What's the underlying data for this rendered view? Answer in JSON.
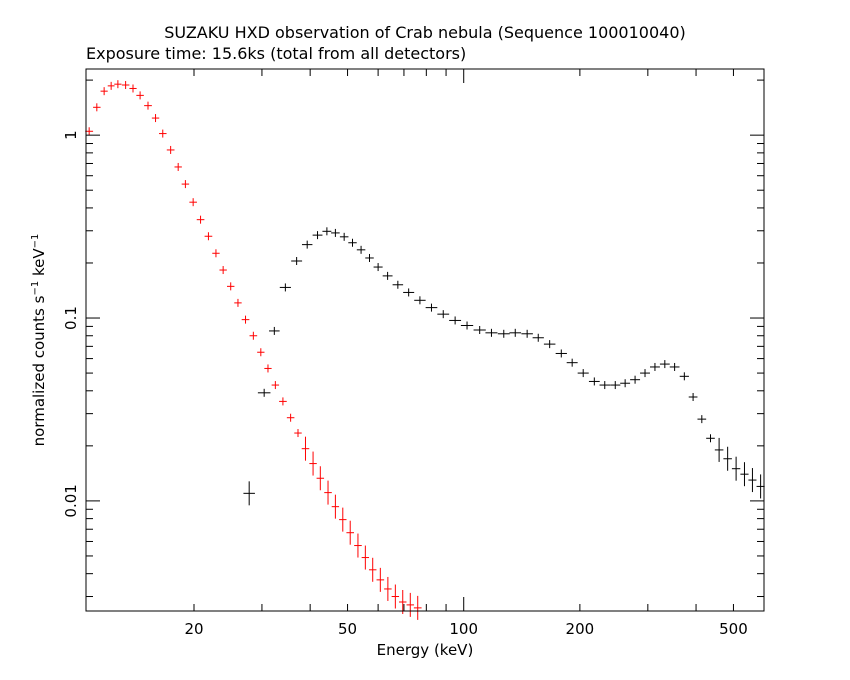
{
  "chart_data": {
    "type": "scatter",
    "title": "SUZAKU HXD observation of Crab nebula (Sequence 100010040)",
    "subtitle": "Exposure time: 15.6ks (total from all detectors)",
    "xlabel": "Energy (keV)",
    "ylabel": {
      "prefix": "normalized counts s",
      "sup1": "−1",
      "mid": " keV",
      "sup2": "−1"
    },
    "x_scale": "log",
    "y_scale": "log",
    "xlim": [
      10.5,
      600
    ],
    "ylim": [
      0.0025,
      2.3
    ],
    "grid": false,
    "x_tick_labels": [
      {
        "value": 20,
        "label": "20"
      },
      {
        "value": 50,
        "label": "50"
      },
      {
        "value": 100,
        "label": "100"
      },
      {
        "value": 200,
        "label": "200"
      },
      {
        "value": 500,
        "label": "500"
      }
    ],
    "y_tick_labels": [
      {
        "value": 1,
        "label": "1"
      },
      {
        "value": 0.1,
        "label": "0.1"
      },
      {
        "value": 0.01,
        "label": "0.01"
      }
    ],
    "series": [
      {
        "color": "#ff0000",
        "x": [
          10.7,
          11.2,
          11.7,
          12.2,
          12.7,
          13.3,
          13.9,
          14.5,
          15.2,
          15.9,
          16.6,
          17.4,
          18.2,
          19.0,
          19.9,
          20.8,
          21.8,
          22.8,
          23.8,
          24.9,
          26.0,
          27.2,
          28.5,
          29.8,
          31.1,
          32.5,
          34.0,
          35.6,
          37.2,
          38.9,
          40.7,
          42.5,
          44.5,
          46.5,
          48.6,
          50.8,
          53.2,
          55.6,
          58.1,
          60.8,
          63.6,
          66.5,
          69.5,
          72.7,
          76.0
        ],
        "y": [
          1.05,
          1.42,
          1.74,
          1.86,
          1.9,
          1.88,
          1.8,
          1.65,
          1.45,
          1.24,
          1.02,
          0.83,
          0.67,
          0.54,
          0.43,
          0.345,
          0.28,
          0.226,
          0.183,
          0.149,
          0.121,
          0.098,
          0.08,
          0.065,
          0.053,
          0.043,
          0.035,
          0.0285,
          0.0235,
          0.0193,
          0.016,
          0.0133,
          0.0111,
          0.0093,
          0.0079,
          0.0067,
          0.0057,
          0.0049,
          0.0042,
          0.0037,
          0.0033,
          0.003,
          0.0028,
          0.0027,
          0.0026
        ]
      },
      {
        "color": "#000000",
        "x": [
          27.8,
          30.4,
          32.3,
          34.5,
          36.9,
          39.3,
          41.8,
          44.2,
          46.5,
          49.0,
          51.5,
          54.2,
          57.0,
          60.0,
          63.5,
          67.5,
          72.0,
          77.0,
          82.5,
          88.5,
          95.0,
          102,
          110,
          118,
          127,
          136,
          146,
          156,
          167,
          179,
          191,
          204,
          218,
          232,
          247,
          262,
          278,
          295,
          313,
          332,
          352,
          373,
          393,
          414,
          436,
          459,
          483,
          508,
          534,
          560,
          588
        ],
        "y": [
          0.011,
          0.039,
          0.085,
          0.147,
          0.205,
          0.252,
          0.284,
          0.298,
          0.292,
          0.278,
          0.258,
          0.236,
          0.213,
          0.19,
          0.17,
          0.152,
          0.138,
          0.125,
          0.114,
          0.105,
          0.097,
          0.091,
          0.086,
          0.083,
          0.082,
          0.083,
          0.082,
          0.078,
          0.072,
          0.064,
          0.057,
          0.05,
          0.045,
          0.043,
          0.043,
          0.044,
          0.046,
          0.05,
          0.054,
          0.056,
          0.054,
          0.048,
          0.037,
          0.028,
          0.022,
          0.019,
          0.017,
          0.015,
          0.014,
          0.013,
          0.012
        ]
      }
    ]
  }
}
